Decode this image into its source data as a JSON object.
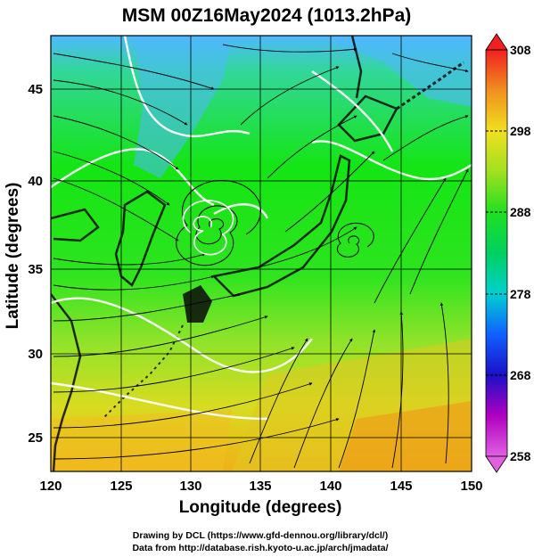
{
  "title": "MSM 00Z16May2024 (1013.2hPa)",
  "map": {
    "x_axis": {
      "label": "Longitude (degrees)",
      "range": [
        120,
        150
      ],
      "ticks": [
        "120",
        "125",
        "130",
        "135",
        "140",
        "145",
        "150"
      ]
    },
    "y_axis": {
      "label": "Latitude  (degrees)",
      "range": [
        22.4,
        47.6
      ],
      "ticks": [
        "25",
        "30",
        "35",
        "40",
        "45"
      ]
    },
    "field_colors": {
      "cold_top": "#4fb8ff",
      "cool": "#31d38a",
      "mid": "#14e514",
      "warm": "#8fe32a",
      "south": "#e8d21e",
      "far_south": "#f1a318"
    },
    "land_color": "#0a0a0a",
    "streamline_color": "#000000",
    "contour_color": "#ffffff",
    "low_center_lonlat": [
      131.2,
      37.4
    ],
    "secondary_low_lonlat": [
      142.0,
      36.5
    ]
  },
  "colorbar": {
    "tick_labels": [
      "308",
      "298",
      "288",
      "278",
      "268",
      "258"
    ],
    "range": [
      258,
      308
    ],
    "stops": [
      {
        "v": 258,
        "c": "#e060e0"
      },
      {
        "v": 263,
        "c": "#b000c0"
      },
      {
        "v": 268,
        "c": "#1a10c8"
      },
      {
        "v": 273,
        "c": "#1060ff"
      },
      {
        "v": 278,
        "c": "#00d0d0"
      },
      {
        "v": 283,
        "c": "#00d060"
      },
      {
        "v": 288,
        "c": "#20e020"
      },
      {
        "v": 293,
        "c": "#a0e020"
      },
      {
        "v": 298,
        "c": "#f0e020"
      },
      {
        "v": 303,
        "c": "#f09020"
      },
      {
        "v": 308,
        "c": "#f02020"
      }
    ]
  },
  "credits": {
    "line1": "Drawing by DCL (https://www.gfd-dennou.org/library/dcl/)",
    "line2": "Data from http://database.rish.kyoto-u.ac.jp/arch/jmadata/"
  }
}
